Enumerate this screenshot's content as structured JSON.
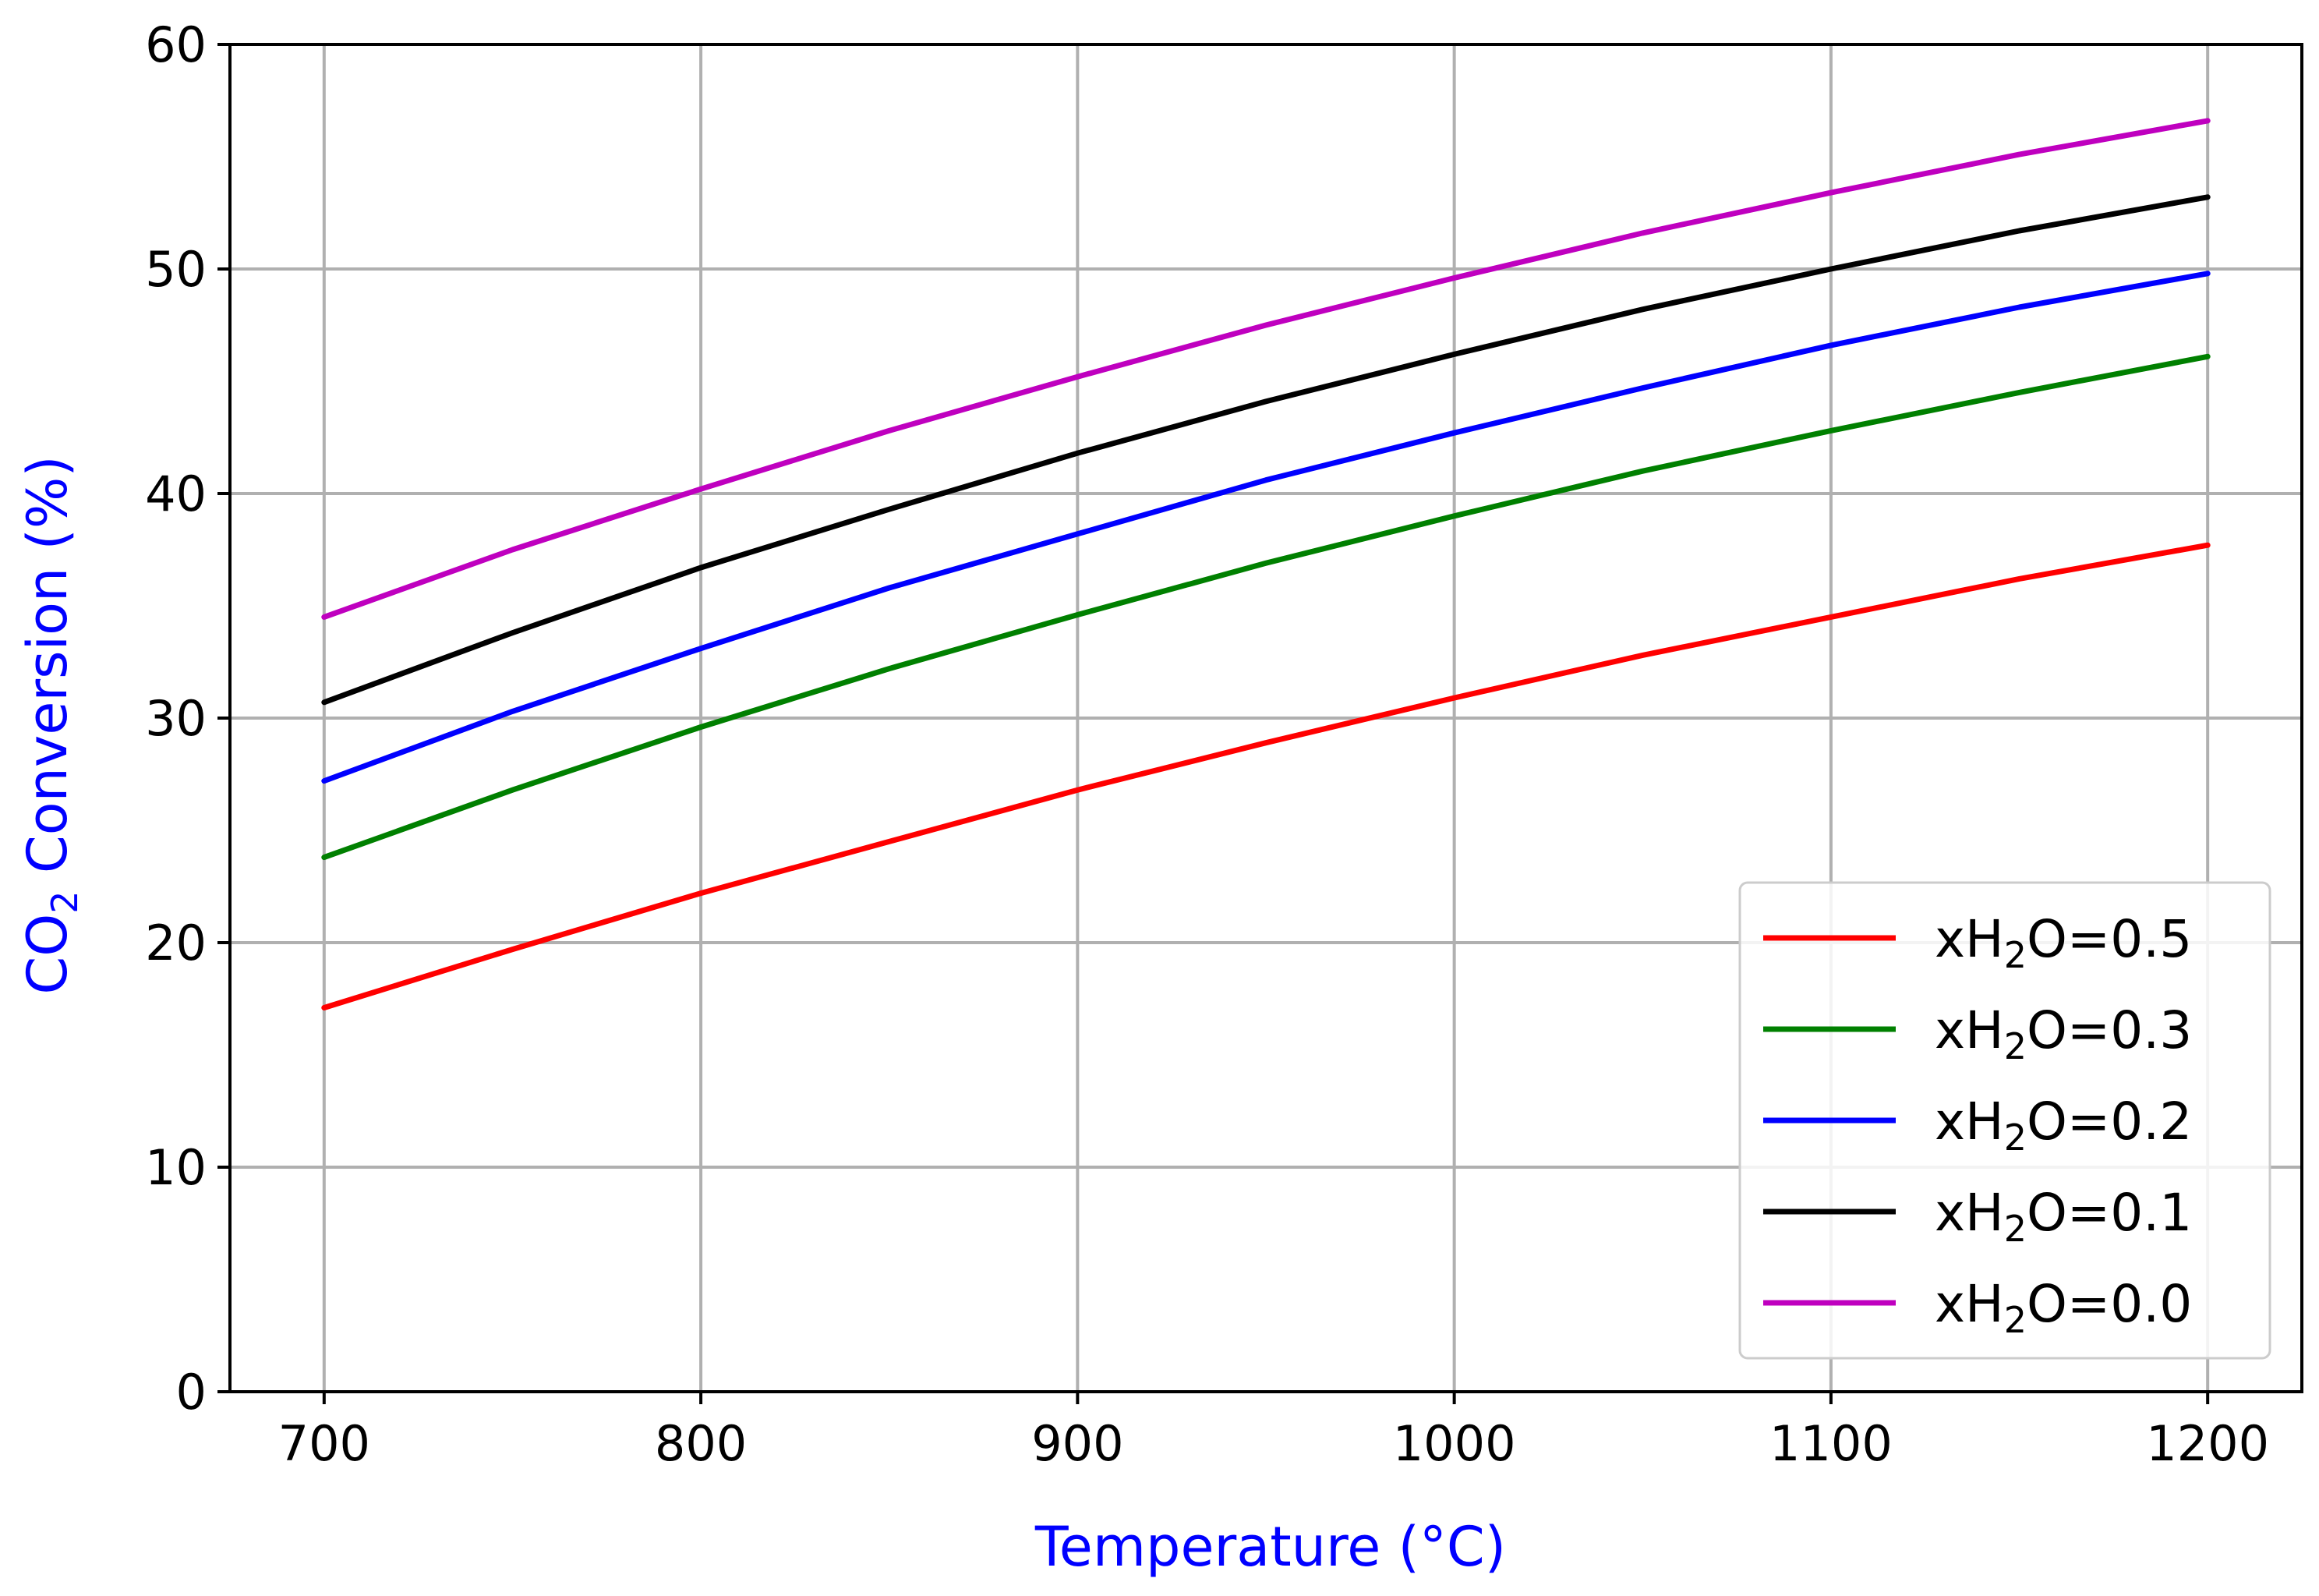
{
  "chart_data": {
    "type": "line",
    "title": "",
    "xlabel": "Temperature (°C)",
    "ylabel": {
      "pre": "CO",
      "sub": "2",
      "post": " Conversion (%)"
    },
    "axis_label_color": "#0000ff",
    "xlim": [
      675,
      1225
    ],
    "ylim": [
      0,
      60
    ],
    "xticks": [
      700,
      800,
      900,
      1000,
      1100,
      1200
    ],
    "yticks": [
      0,
      10,
      20,
      30,
      40,
      50,
      60
    ],
    "grid": true,
    "legend_position": "lower-right",
    "x": [
      700,
      750,
      800,
      850,
      900,
      950,
      1000,
      1050,
      1100,
      1150,
      1200
    ],
    "series": [
      {
        "name": {
          "pre": "xH",
          "sub": "2",
          "post": "O=0.5"
        },
        "color": "#ff0000",
        "values": [
          17.1,
          19.7,
          22.2,
          24.5,
          26.8,
          28.9,
          30.9,
          32.8,
          34.5,
          36.2,
          37.7
        ]
      },
      {
        "name": {
          "pre": "xH",
          "sub": "2",
          "post": "O=0.3"
        },
        "color": "#008000",
        "values": [
          23.8,
          26.8,
          29.6,
          32.2,
          34.6,
          36.9,
          39.0,
          41.0,
          42.8,
          44.5,
          46.1
        ]
      },
      {
        "name": {
          "pre": "xH",
          "sub": "2",
          "post": "O=0.2"
        },
        "color": "#0000ff",
        "values": [
          27.2,
          30.3,
          33.1,
          35.8,
          38.2,
          40.6,
          42.7,
          44.7,
          46.6,
          48.3,
          49.8
        ]
      },
      {
        "name": {
          "pre": "xH",
          "sub": "2",
          "post": "O=0.1"
        },
        "color": "#000000",
        "values": [
          30.7,
          33.8,
          36.7,
          39.3,
          41.8,
          44.1,
          46.2,
          48.2,
          50.0,
          51.7,
          53.2
        ]
      },
      {
        "name": {
          "pre": "xH",
          "sub": "2",
          "post": "O=0.0"
        },
        "color": "#bf00bf",
        "values": [
          34.5,
          37.5,
          40.2,
          42.8,
          45.2,
          47.5,
          49.6,
          51.6,
          53.4,
          55.1,
          56.6
        ]
      }
    ]
  }
}
